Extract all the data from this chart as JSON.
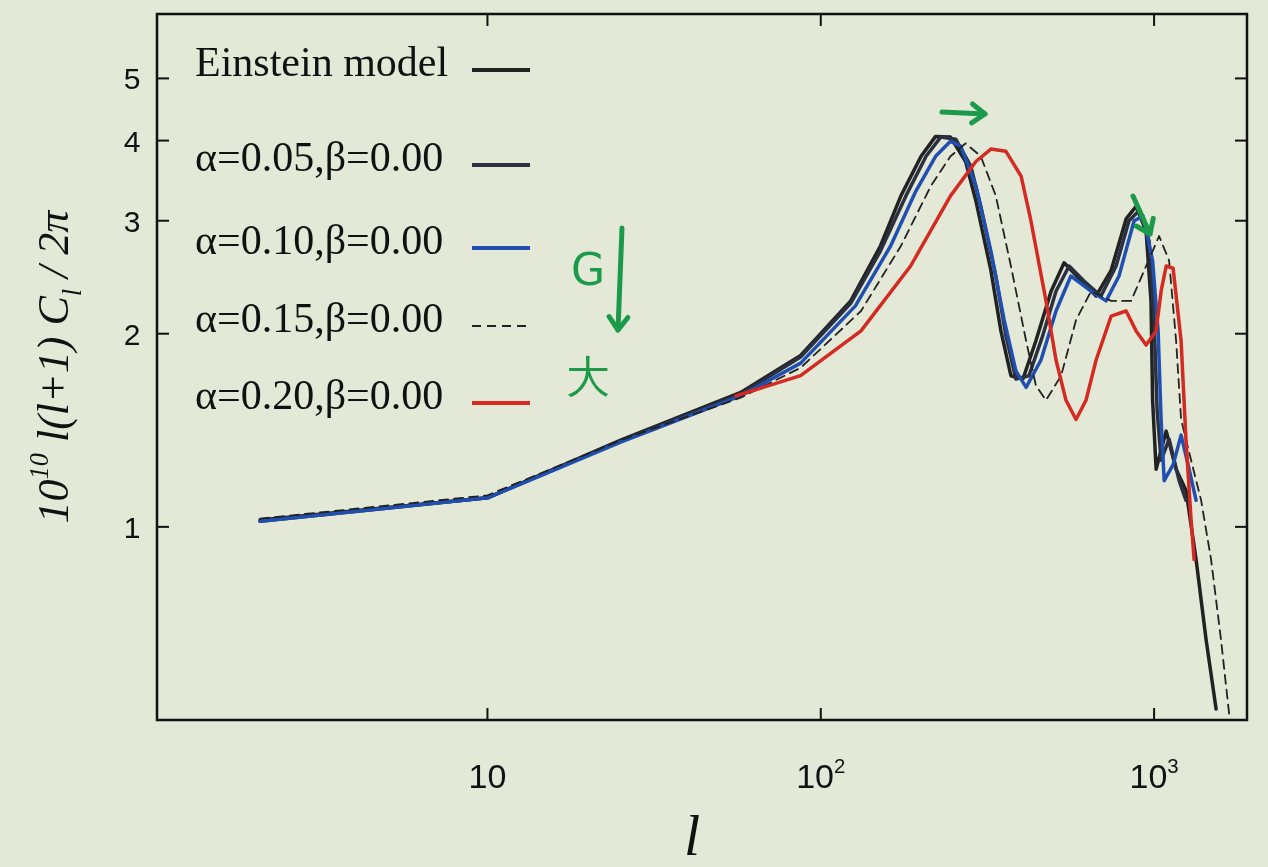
{
  "chart_data": {
    "type": "line",
    "xlabel": "l",
    "ylabel": "10$^{10}$ l(l+1) C$_{l}$ / 2π",
    "log": "xy",
    "xlim": [
      1.02,
      1900
    ],
    "ylim": [
      0.5,
      6.3
    ],
    "xticks": [
      10,
      {
        "value": 100,
        "label": "10$^{2}$"
      },
      {
        "value": 1000,
        "label": "10$^{3}$"
      }
    ],
    "yticks": [
      1,
      2,
      3,
      4,
      5
    ],
    "legend": "top left",
    "annotations": [
      "G",
      "大"
    ],
    "series": [
      {
        "name": "Einstein model",
        "color": "#222222",
        "line_style": "solid",
        "x": [
          2.08,
          10,
          25.1,
          57.5,
          87,
          123,
          151,
          174,
          200,
          221,
          245,
          272,
          292,
          324,
          347,
          372,
          404,
          442,
          491,
          537,
          604,
          670,
          743,
          824,
          883,
          946,
          979,
          990,
          1014,
          1087,
          1164,
          1247,
          1337,
          1432,
          1535
        ],
        "values": [
          1.025,
          1.11,
          1.365,
          1.62,
          1.85,
          2.25,
          2.74,
          3.28,
          3.78,
          4.06,
          4.05,
          3.71,
          3.22,
          2.51,
          2.02,
          1.72,
          1.7,
          1.95,
          2.33,
          2.58,
          2.42,
          2.29,
          2.51,
          3.02,
          3.16,
          2.89,
          2.25,
          1.575,
          1.23,
          1.41,
          1.23,
          1.14,
          0.889,
          0.667,
          0.52
        ]
      },
      {
        "name": "α=0.05,β=0.00",
        "color": "#2b3040",
        "line_style": "solid",
        "x": [
          2.08,
          10,
          25.1,
          57.5,
          87,
          123,
          151,
          180,
          207,
          229,
          254,
          282,
          302,
          335,
          359,
          385,
          421,
          464,
          508,
          556,
          625,
          693,
          769,
          841,
          901,
          966,
          1000,
          1021,
          1050,
          1109,
          1189,
          1247
        ],
        "values": [
          1.02,
          1.11,
          1.36,
          1.61,
          1.84,
          2.23,
          2.69,
          3.28,
          3.78,
          4.05,
          4.02,
          3.65,
          3.16,
          2.46,
          1.99,
          1.7,
          1.72,
          1.99,
          2.33,
          2.55,
          2.4,
          2.29,
          2.55,
          3.0,
          3.11,
          2.79,
          2.1,
          1.52,
          1.27,
          1.37,
          1.18,
          1.1
        ]
      },
      {
        "name": "α=0.10,β=0.00",
        "color": "#1f4fb0",
        "line_style": "solid",
        "x": [
          2.08,
          10,
          25.1,
          57.5,
          87,
          127,
          162,
          193,
          221,
          245,
          263,
          292,
          324,
          355,
          385,
          413,
          458,
          508,
          563,
          647,
          718,
          785,
          871,
          927,
          990,
          1028,
          1050,
          1072,
          1140,
          1205,
          1274,
          1337
        ],
        "values": [
          1.02,
          1.11,
          1.355,
          1.6,
          1.8,
          2.21,
          2.74,
          3.34,
          3.78,
          3.99,
          3.92,
          3.4,
          2.69,
          2.1,
          1.75,
          1.65,
          1.82,
          2.17,
          2.46,
          2.33,
          2.25,
          2.46,
          3.0,
          3.05,
          2.6,
          2.02,
          1.47,
          1.18,
          1.25,
          1.39,
          1.23,
          1.1
        ]
      },
      {
        "name": "α=0.15,β=0.00",
        "color": "#222222",
        "line_style": "dashed",
        "x": [
          2.08,
          10,
          25.1,
          57.5,
          87,
          132,
          174,
          214,
          245,
          272,
          302,
          335,
          372,
          413,
          442,
          474,
          526,
          583,
          647,
          743,
          853,
          946,
          1035,
          1109,
          1164,
          1205,
          1291,
          1384,
          1483,
          1588,
          1680
        ],
        "values": [
          1.03,
          1.12,
          1.365,
          1.59,
          1.77,
          2.17,
          2.74,
          3.4,
          3.78,
          3.96,
          3.78,
          3.28,
          2.55,
          1.95,
          1.66,
          1.575,
          1.72,
          2.1,
          2.33,
          2.25,
          2.25,
          2.55,
          2.84,
          2.6,
          1.95,
          1.47,
          1.27,
          1.1,
          0.889,
          0.667,
          0.51
        ]
      },
      {
        "name": "α=0.20,β=0.00",
        "color": "#d42a22",
        "line_style": "solid",
        "x": [
          55.6,
          87,
          132,
          186,
          245,
          292,
          324,
          359,
          399,
          427,
          474,
          508,
          544,
          583,
          625,
          670,
          743,
          824,
          883,
          946,
          1014,
          1050,
          1087,
          1140,
          1205,
          1247,
          1291,
          1318
        ],
        "values": [
          1.6,
          1.72,
          2.02,
          2.55,
          3.28,
          3.71,
          3.88,
          3.85,
          3.52,
          3.0,
          2.25,
          1.82,
          1.575,
          1.47,
          1.575,
          1.82,
          2.13,
          2.17,
          2.02,
          1.92,
          2.02,
          2.33,
          2.55,
          2.53,
          1.95,
          1.365,
          1.025,
          0.889
        ]
      }
    ]
  }
}
